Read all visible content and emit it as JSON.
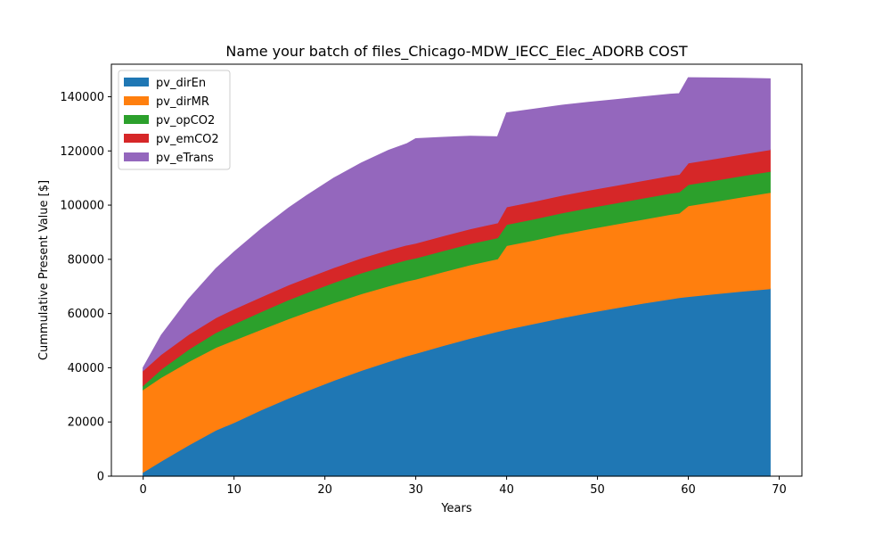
{
  "chart_data": {
    "type": "area",
    "stacked": true,
    "title": "Name your batch of files_Chicago-MDW_IECC_Elec_ADORB COST",
    "xlabel": "Years",
    "ylabel": "Cummulative Present Value [$]",
    "xlim": [
      -3.5,
      72.5
    ],
    "ylim": [
      0,
      152000
    ],
    "xticks": [
      0,
      10,
      20,
      30,
      40,
      50,
      60,
      70
    ],
    "yticks": [
      0,
      20000,
      40000,
      60000,
      80000,
      100000,
      120000,
      140000
    ],
    "legend_position": "upper-left",
    "grid": false,
    "x": [
      0,
      2,
      5,
      8,
      10,
      13,
      16,
      18,
      21,
      24,
      27,
      29,
      30,
      33,
      36,
      39,
      40,
      43,
      46,
      49,
      52,
      55,
      58,
      59,
      60,
      63,
      66,
      69
    ],
    "series": [
      {
        "name": "pv_dirEn",
        "color": "#1f77b4",
        "values": [
          1500,
          5600,
          11500,
          17000,
          19800,
          24500,
          28800,
          31500,
          35400,
          39000,
          42300,
          44400,
          45300,
          48200,
          50900,
          53400,
          54200,
          56300,
          58400,
          60300,
          62100,
          63800,
          65400,
          65900,
          66300,
          67300,
          68300,
          69200
        ]
      },
      {
        "name": "pv_dirMR",
        "color": "#ff7f0e",
        "values": [
          30500,
          30900,
          30800,
          30500,
          30400,
          29700,
          29300,
          29000,
          28600,
          28300,
          27900,
          27600,
          27400,
          27200,
          27100,
          26800,
          30900,
          30800,
          30900,
          30900,
          30900,
          31000,
          31200,
          31200,
          33500,
          34100,
          34800,
          35500
        ]
      },
      {
        "name": "pv_opCO2",
        "color": "#2ca02c",
        "values": [
          1500,
          3000,
          4500,
          5500,
          6000,
          6500,
          7000,
          7200,
          7500,
          7700,
          7800,
          7800,
          7800,
          7800,
          7800,
          7800,
          7800,
          7800,
          7800,
          7800,
          7800,
          7800,
          7800,
          7800,
          7800,
          7800,
          7800,
          7800
        ]
      },
      {
        "name": "pv_emCO2",
        "color": "#d62728",
        "values": [
          5500,
          5500,
          5500,
          5500,
          5500,
          5500,
          5500,
          5500,
          5500,
          5500,
          5500,
          5500,
          5500,
          5500,
          5500,
          5500,
          6500,
          6500,
          6500,
          6500,
          6500,
          6500,
          6500,
          6500,
          8000,
          8000,
          8000,
          8000
        ]
      },
      {
        "name": "pv_eTrans",
        "color": "#9467bd",
        "values": [
          1000,
          7000,
          13000,
          18000,
          21000,
          25000,
          28300,
          30300,
          33000,
          35000,
          36700,
          37300,
          38500,
          36300,
          34100,
          31700,
          34600,
          34000,
          33200,
          32400,
          31600,
          30800,
          30000,
          29700,
          31400,
          29700,
          27900,
          26100
        ]
      }
    ]
  }
}
